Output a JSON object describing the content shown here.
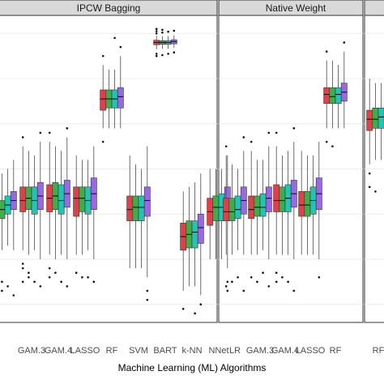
{
  "chart_data": {
    "type": "box",
    "xlabel": "Machine Learning (ML) Algorithms",
    "colors": [
      "#e0404a",
      "#3fae49",
      "#22c5b3",
      "#9a68e6"
    ],
    "panels": [
      {
        "title": "IPCW Bagging",
        "categories": [
          {
            "label": "",
            "boxes": [
              {
                "q1": 3.9,
                "med": 4.0,
                "q3": 4.3,
                "lo": 3.3,
                "hi": 5.1,
                "out": [
                  2.2,
                  2.4,
                  2.6,
                  2.7
                ]
              },
              {
                "q1": 3.9,
                "med": 4.1,
                "q3": 4.3,
                "lo": 3.2,
                "hi": 4.9,
                "out": [
                  2.3,
                  2.5
                ]
              },
              {
                "q1": 4.0,
                "med": 4.2,
                "q3": 4.4,
                "lo": 3.3,
                "hi": 5.0,
                "out": [
                  2.4
                ]
              },
              {
                "q1": 4.1,
                "med": 4.3,
                "q3": 4.5,
                "lo": 3.2,
                "hi": 5.2,
                "out": [
                  2.2
                ]
              }
            ]
          },
          {
            "label": "GAM.3",
            "boxes": [
              {
                "q1": 4.05,
                "med": 4.3,
                "q3": 4.6,
                "lo": 3.2,
                "hi": 5.5,
                "out": [
                  2.5,
                  2.8,
                  2.9,
                  5.7
                ]
              },
              {
                "q1": 4.1,
                "med": 4.35,
                "q3": 4.6,
                "lo": 3.1,
                "hi": 5.4,
                "out": [
                  2.6,
                  2.7
                ]
              },
              {
                "q1": 4.0,
                "med": 4.3,
                "q3": 4.6,
                "lo": 3.2,
                "hi": 5.3,
                "out": [
                  2.5
                ]
              },
              {
                "q1": 4.1,
                "med": 4.4,
                "q3": 4.7,
                "lo": 3.0,
                "hi": 5.6,
                "out": [
                  2.4,
                  5.8
                ]
              }
            ]
          },
          {
            "label": "GAM.4",
            "boxes": [
              {
                "q1": 4.05,
                "med": 4.35,
                "q3": 4.65,
                "lo": 3.1,
                "hi": 5.6,
                "out": [
                  2.6,
                  2.8,
                  5.8
                ]
              },
              {
                "q1": 4.1,
                "med": 4.4,
                "q3": 4.7,
                "lo": 3.0,
                "hi": 5.5,
                "out": [
                  2.7
                ]
              },
              {
                "q1": 4.0,
                "med": 4.3,
                "q3": 4.65,
                "lo": 3.1,
                "hi": 5.4,
                "out": [
                  2.5
                ]
              },
              {
                "q1": 4.15,
                "med": 4.45,
                "q3": 4.75,
                "lo": 3.0,
                "hi": 5.7,
                "out": [
                  2.4,
                  5.9
                ]
              }
            ]
          },
          {
            "label": "LASSO",
            "boxes": [
              {
                "q1": 3.95,
                "med": 4.35,
                "q3": 4.6,
                "lo": 3.1,
                "hi": 5.3,
                "out": [
                  2.7
                ]
              },
              {
                "q1": 4.05,
                "med": 4.35,
                "q3": 4.6,
                "lo": 3.1,
                "hi": 5.2,
                "out": [
                  2.6
                ]
              },
              {
                "q1": 4.0,
                "med": 4.3,
                "q3": 4.6,
                "lo": 3.2,
                "hi": 5.2,
                "out": [
                  2.6
                ]
              },
              {
                "q1": 4.1,
                "med": 4.45,
                "q3": 4.8,
                "lo": 3.0,
                "hi": 5.5,
                "out": [
                  2.5
                ]
              }
            ]
          },
          {
            "label": "RF",
            "boxes": [
              {
                "q1": 6.3,
                "med": 6.55,
                "q3": 6.75,
                "lo": 5.9,
                "hi": 7.3,
                "out": [
                  5.6,
                  7.5
                ]
              },
              {
                "q1": 6.35,
                "med": 6.55,
                "q3": 6.75,
                "lo": 5.9,
                "hi": 7.2,
                "out": []
              },
              {
                "q1": 6.35,
                "med": 6.55,
                "q3": 6.75,
                "lo": 5.9,
                "hi": 7.2,
                "out": [
                  7.9
                ]
              },
              {
                "q1": 6.35,
                "med": 6.6,
                "q3": 6.8,
                "lo": 5.9,
                "hi": 7.5,
                "out": [
                  7.7
                ]
              }
            ]
          },
          {
            "label": "SVM",
            "boxes": [
              {
                "q1": 3.85,
                "med": 4.1,
                "q3": 4.4,
                "lo": 2.8,
                "hi": 5.3,
                "out": []
              },
              {
                "q1": 3.85,
                "med": 4.15,
                "q3": 4.4,
                "lo": 2.8,
                "hi": 5.1,
                "out": []
              },
              {
                "q1": 3.85,
                "med": 4.15,
                "q3": 4.4,
                "lo": 2.8,
                "hi": 5.0,
                "out": []
              },
              {
                "q1": 3.95,
                "med": 4.3,
                "q3": 4.6,
                "lo": 2.6,
                "hi": 5.5,
                "out": [
                  2.1,
                  2.3
                ]
              }
            ]
          },
          {
            "label": "BART",
            "boxes": [
              {
                "q1": 7.75,
                "med": 7.8,
                "q3": 7.85,
                "lo": 7.65,
                "hi": 7.95,
                "out": [
                  7.5,
                  7.55,
                  8.0,
                  8.05,
                  8.1
                ]
              },
              {
                "q1": 7.76,
                "med": 7.8,
                "q3": 7.84,
                "lo": 7.66,
                "hi": 7.94,
                "out": [
                  7.52,
                  8.02,
                  8.08
                ]
              },
              {
                "q1": 7.76,
                "med": 7.8,
                "q3": 7.84,
                "lo": 7.66,
                "hi": 7.94,
                "out": [
                  7.55,
                  8.04
                ]
              },
              {
                "q1": 7.77,
                "med": 7.82,
                "q3": 7.86,
                "lo": 7.68,
                "hi": 7.96,
                "out": [
                  7.58,
                  8.06
                ]
              }
            ]
          },
          {
            "label": "k-NN",
            "boxes": [
              {
                "q1": 3.2,
                "med": 3.5,
                "q3": 3.8,
                "lo": 2.3,
                "hi": 4.5,
                "out": [
                  1.9
                ]
              },
              {
                "q1": 3.25,
                "med": 3.55,
                "q3": 3.85,
                "lo": 2.4,
                "hi": 4.6,
                "out": []
              },
              {
                "q1": 3.25,
                "med": 3.6,
                "q3": 3.85,
                "lo": 2.4,
                "hi": 4.7,
                "out": [
                  1.8
                ]
              },
              {
                "q1": 3.35,
                "med": 3.7,
                "q3": 4.0,
                "lo": 2.2,
                "hi": 4.9,
                "out": [
                  2.0
                ]
              }
            ]
          },
          {
            "label": "NNet",
            "boxes": [
              {
                "q1": 3.75,
                "med": 4.05,
                "q3": 4.35,
                "lo": 3.0,
                "hi": 5.0,
                "out": []
              },
              {
                "q1": 3.85,
                "med": 4.15,
                "q3": 4.4,
                "lo": 3.0,
                "hi": 5.0,
                "out": []
              },
              {
                "q1": 3.85,
                "med": 4.15,
                "q3": 4.45,
                "lo": 3.0,
                "hi": 5.0,
                "out": []
              },
              {
                "q1": 4.0,
                "med": 4.3,
                "q3": 4.6,
                "lo": 2.8,
                "hi": 5.3,
                "out": [
                  2.3,
                  2.5
                ]
              }
            ]
          }
        ]
      },
      {
        "title": "Native Weight",
        "categories": [
          {
            "label": "LR",
            "boxes": [
              {
                "q1": 3.85,
                "med": 4.05,
                "q3": 4.35,
                "lo": 3.1,
                "hi": 5.3,
                "out": [
                  2.4,
                  5.5
                ]
              },
              {
                "q1": 3.85,
                "med": 4.05,
                "q3": 4.35,
                "lo": 3.1,
                "hi": 5.1,
                "out": [
                  2.5
                ]
              },
              {
                "q1": 3.9,
                "med": 4.1,
                "q3": 4.4,
                "lo": 3.2,
                "hi": 5.0,
                "out": [
                  2.6
                ]
              },
              {
                "q1": 4.0,
                "med": 4.3,
                "q3": 4.6,
                "lo": 3.1,
                "hi": 5.4,
                "out": [
                  2.3,
                  5.7
                ]
              }
            ]
          },
          {
            "label": "GAM.3",
            "boxes": [
              {
                "q1": 3.9,
                "med": 4.1,
                "q3": 4.4,
                "lo": 3.1,
                "hi": 5.4,
                "out": [
                  2.6,
                  5.6
                ]
              },
              {
                "q1": 3.95,
                "med": 4.15,
                "q3": 4.4,
                "lo": 3.1,
                "hi": 5.2,
                "out": [
                  2.5
                ]
              },
              {
                "q1": 3.95,
                "med": 4.15,
                "q3": 4.45,
                "lo": 3.2,
                "hi": 5.2,
                "out": [
                  2.7
                ]
              },
              {
                "q1": 4.05,
                "med": 4.35,
                "q3": 4.6,
                "lo": 3.0,
                "hi": 5.5,
                "out": [
                  2.4,
                  5.8
                ]
              }
            ]
          },
          {
            "label": "GAM.4",
            "boxes": [
              {
                "q1": 4.05,
                "med": 4.3,
                "q3": 4.65,
                "lo": 3.1,
                "hi": 5.5,
                "out": [
                  2.5,
                  2.7,
                  5.8
                ]
              },
              {
                "q1": 4.05,
                "med": 4.3,
                "q3": 4.6,
                "lo": 3.1,
                "hi": 5.3,
                "out": [
                  2.6
                ]
              },
              {
                "q1": 4.05,
                "med": 4.35,
                "q3": 4.65,
                "lo": 3.1,
                "hi": 5.4,
                "out": [
                  2.5
                ]
              },
              {
                "q1": 4.15,
                "med": 4.45,
                "q3": 4.75,
                "lo": 3.0,
                "hi": 5.6,
                "out": [
                  2.3,
                  5.9
                ]
              }
            ]
          },
          {
            "label": "LASSO",
            "boxes": [
              {
                "q1": 3.95,
                "med": 4.2,
                "q3": 4.5,
                "lo": 3.1,
                "hi": 5.4,
                "out": []
              },
              {
                "q1": 3.95,
                "med": 4.2,
                "q3": 4.5,
                "lo": 3.1,
                "hi": 5.3,
                "out": []
              },
              {
                "q1": 4.0,
                "med": 4.3,
                "q3": 4.6,
                "lo": 3.1,
                "hi": 5.3,
                "out": []
              },
              {
                "q1": 4.1,
                "med": 4.45,
                "q3": 4.8,
                "lo": 3.0,
                "hi": 5.6,
                "out": [
                  2.6
                ]
              }
            ]
          },
          {
            "label": "RF",
            "boxes": [
              {
                "q1": 6.45,
                "med": 6.65,
                "q3": 6.8,
                "lo": 5.9,
                "hi": 7.4,
                "out": [
                  5.6,
                  7.6
                ]
              },
              {
                "q1": 6.45,
                "med": 6.6,
                "q3": 6.8,
                "lo": 5.9,
                "hi": 7.4,
                "out": [
                  5.5
                ]
              },
              {
                "q1": 6.45,
                "med": 6.65,
                "q3": 6.8,
                "lo": 5.9,
                "hi": 7.3,
                "out": []
              },
              {
                "q1": 6.5,
                "med": 6.7,
                "q3": 6.9,
                "lo": 5.9,
                "hi": 7.6,
                "out": [
                  7.8
                ]
              }
            ]
          }
        ]
      },
      {
        "title": "",
        "categories": [
          {
            "label": "RF",
            "boxes": [
              {
                "q1": 5.85,
                "med": 6.1,
                "q3": 6.3,
                "lo": 5.1,
                "hi": 7.0,
                "out": [
                  4.6,
                  4.9
                ]
              },
              {
                "q1": 5.9,
                "med": 6.1,
                "q3": 6.35,
                "lo": 5.2,
                "hi": 6.9,
                "out": [
                  4.5
                ]
              },
              {
                "q1": 5.9,
                "med": 6.15,
                "q3": 6.35,
                "lo": 5.2,
                "hi": 6.9,
                "out": []
              },
              {
                "q1": 5.95,
                "med": 6.2,
                "q3": 6.4,
                "lo": 5.1,
                "hi": 7.2,
                "out": [
                  4.7
                ]
              }
            ]
          }
        ]
      }
    ]
  }
}
